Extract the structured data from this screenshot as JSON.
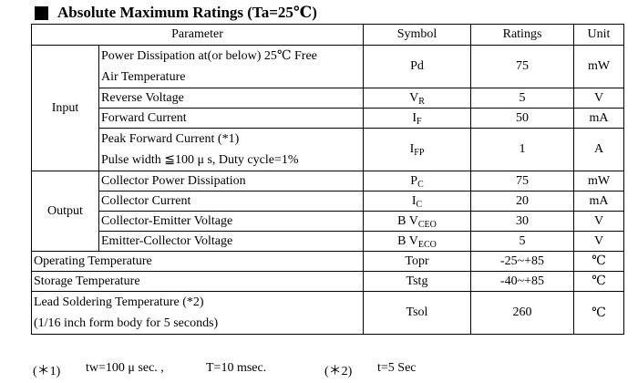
{
  "title": "Absolute Maximum Ratings (Ta=25℃)",
  "headers": {
    "parameter": "Parameter",
    "symbol": "Symbol",
    "ratings": "Ratings",
    "unit": "Unit"
  },
  "groups": {
    "input": "Input",
    "output": "Output"
  },
  "rows": {
    "pd": {
      "line1": "Power Dissipation at(or below) 25℃  Free",
      "line2": "Air Temperature",
      "symbol": "Pd",
      "sub": "",
      "rating": "75",
      "unit": "mW"
    },
    "vr": {
      "param": "Reverse Voltage",
      "symbol": "V",
      "sub": "R",
      "rating": "5",
      "unit": "V"
    },
    "if": {
      "param": "Forward Current",
      "symbol": "I",
      "sub": "F",
      "rating": "50",
      "unit": "mA"
    },
    "ifp": {
      "line1": "Peak Forward Current (*1)",
      "line2": "Pulse width  ≦100 μ s, Duty cycle=1%",
      "symbol": "I",
      "sub": "FP",
      "rating": "1",
      "unit": "A"
    },
    "pc": {
      "param": "Collector Power Dissipation",
      "symbol": "P",
      "sub": "C",
      "rating": "75",
      "unit": "mW"
    },
    "ic": {
      "param": "Collector Current",
      "symbol": "I",
      "sub": "C",
      "rating": "20",
      "unit": "mA"
    },
    "vceo": {
      "param": "Collector-Emitter Voltage",
      "symbol": "B V",
      "sub": "CEO",
      "rating": "30",
      "unit": "V"
    },
    "veco": {
      "param": "Emitter-Collector Voltage",
      "symbol": "B V",
      "sub": "ECO",
      "rating": "5",
      "unit": "V"
    },
    "topr": {
      "param": "Operating Temperature",
      "symbol": "Topr",
      "rating": "-25~+85",
      "unit": "℃"
    },
    "tstg": {
      "param": "Storage Temperature",
      "symbol": "Tstg",
      "rating": "-40~+85",
      "unit": "℃"
    },
    "tsol": {
      "line1": "Lead Soldering Temperature (*2)",
      "line2": "(1/16 inch form body for 5 seconds)",
      "symbol": "Tsol",
      "rating": "260",
      "unit": "℃"
    }
  },
  "notes": {
    "n1_mark": "(＊1)",
    "n1_text": "tw=100  μ sec. ,",
    "n1_text2": "T=10 msec.",
    "n2_mark": "(＊2)",
    "n2_text": "t=5 Sec"
  }
}
